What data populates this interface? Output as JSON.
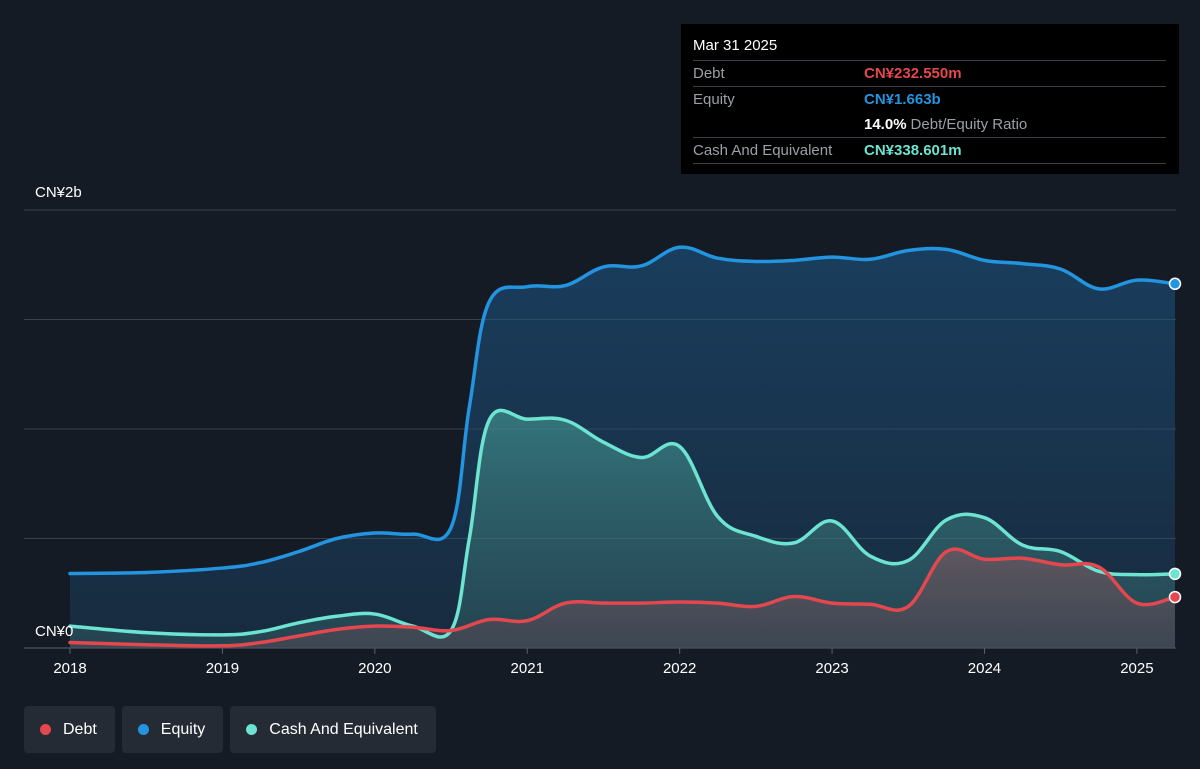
{
  "tooltip": {
    "date": "Mar 31 2025",
    "debt_label": "Debt",
    "debt_value": "CN¥232.550m",
    "equity_label": "Equity",
    "equity_value": "CN¥1.663b",
    "ratio_value": "14.0%",
    "ratio_label": "Debt/Equity Ratio",
    "cash_label": "Cash And Equivalent",
    "cash_value": "CN¥338.601m"
  },
  "legend": {
    "items": [
      {
        "label": "Debt",
        "color": "#e5474f"
      },
      {
        "label": "Equity",
        "color": "#2394df"
      },
      {
        "label": "Cash And Equivalent",
        "color": "#6de3d1"
      }
    ]
  },
  "chart_data": {
    "type": "area",
    "title": "",
    "xlabel": "",
    "ylabel": "",
    "y_unit": "CN¥ m",
    "ylim": [
      0,
      2000
    ],
    "y_tick_labels": [
      {
        "value": 2000,
        "label": "CN¥2b"
      },
      {
        "value": 0,
        "label": "CN¥0"
      }
    ],
    "y_gridlines": [
      0,
      500,
      1000,
      1500,
      2000
    ],
    "x_ticks": [
      "2018",
      "2019",
      "2020",
      "2021",
      "2022",
      "2023",
      "2024",
      "2025"
    ],
    "xlim": [
      2018.0,
      2025.25
    ],
    "grid": true,
    "legend_position": "bottom-left",
    "series": [
      {
        "name": "Equity",
        "color": "#2394df",
        "points": [
          [
            2018.0,
            340
          ],
          [
            2018.5,
            345
          ],
          [
            2019.0,
            365
          ],
          [
            2019.25,
            390
          ],
          [
            2019.5,
            440
          ],
          [
            2019.75,
            500
          ],
          [
            2020.0,
            525
          ],
          [
            2020.25,
            520
          ],
          [
            2020.5,
            550
          ],
          [
            2020.62,
            1100
          ],
          [
            2020.75,
            1580
          ],
          [
            2021.0,
            1650
          ],
          [
            2021.25,
            1655
          ],
          [
            2021.5,
            1740
          ],
          [
            2021.75,
            1745
          ],
          [
            2022.0,
            1830
          ],
          [
            2022.25,
            1780
          ],
          [
            2022.5,
            1765
          ],
          [
            2022.75,
            1770
          ],
          [
            2023.0,
            1785
          ],
          [
            2023.25,
            1775
          ],
          [
            2023.5,
            1815
          ],
          [
            2023.75,
            1820
          ],
          [
            2024.0,
            1770
          ],
          [
            2024.25,
            1755
          ],
          [
            2024.5,
            1730
          ],
          [
            2024.75,
            1640
          ],
          [
            2025.0,
            1680
          ],
          [
            2025.25,
            1663
          ]
        ]
      },
      {
        "name": "Cash And Equivalent",
        "color": "#6de3d1",
        "points": [
          [
            2018.0,
            100
          ],
          [
            2018.5,
            70
          ],
          [
            2019.0,
            60
          ],
          [
            2019.25,
            75
          ],
          [
            2019.5,
            115
          ],
          [
            2019.75,
            145
          ],
          [
            2020.0,
            155
          ],
          [
            2020.25,
            100
          ],
          [
            2020.5,
            80
          ],
          [
            2020.62,
            500
          ],
          [
            2020.75,
            1040
          ],
          [
            2021.0,
            1045
          ],
          [
            2021.25,
            1040
          ],
          [
            2021.5,
            940
          ],
          [
            2021.75,
            870
          ],
          [
            2022.0,
            920
          ],
          [
            2022.25,
            600
          ],
          [
            2022.5,
            510
          ],
          [
            2022.75,
            480
          ],
          [
            2023.0,
            580
          ],
          [
            2023.25,
            420
          ],
          [
            2023.5,
            400
          ],
          [
            2023.75,
            585
          ],
          [
            2024.0,
            595
          ],
          [
            2024.25,
            470
          ],
          [
            2024.5,
            440
          ],
          [
            2024.75,
            350
          ],
          [
            2025.0,
            335
          ],
          [
            2025.25,
            338.6
          ]
        ]
      },
      {
        "name": "Debt",
        "color": "#e5474f",
        "points": [
          [
            2018.0,
            25
          ],
          [
            2018.5,
            15
          ],
          [
            2019.0,
            10
          ],
          [
            2019.25,
            25
          ],
          [
            2019.5,
            55
          ],
          [
            2019.75,
            85
          ],
          [
            2020.0,
            100
          ],
          [
            2020.25,
            95
          ],
          [
            2020.5,
            80
          ],
          [
            2020.75,
            130
          ],
          [
            2021.0,
            125
          ],
          [
            2021.25,
            205
          ],
          [
            2021.5,
            205
          ],
          [
            2021.75,
            205
          ],
          [
            2022.0,
            210
          ],
          [
            2022.25,
            205
          ],
          [
            2022.5,
            190
          ],
          [
            2022.75,
            235
          ],
          [
            2023.0,
            205
          ],
          [
            2023.25,
            200
          ],
          [
            2023.5,
            190
          ],
          [
            2023.75,
            440
          ],
          [
            2024.0,
            405
          ],
          [
            2024.25,
            410
          ],
          [
            2024.5,
            380
          ],
          [
            2024.75,
            370
          ],
          [
            2025.0,
            205
          ],
          [
            2025.25,
            232.55
          ]
        ]
      }
    ]
  }
}
